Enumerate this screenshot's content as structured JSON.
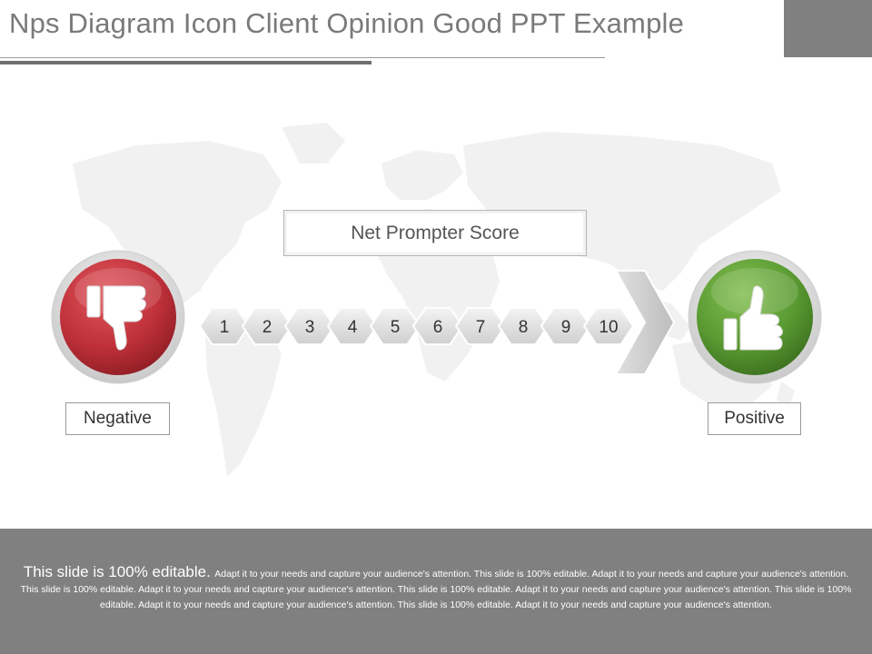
{
  "slide": {
    "title": "Nps Diagram Icon Client Opinion Good PPT Example"
  },
  "diagram": {
    "score_title": "Net Prompter Score",
    "scale_values": [
      "1",
      "2",
      "3",
      "4",
      "5",
      "6",
      "7",
      "8",
      "9",
      "10"
    ],
    "negative_label": "Negative",
    "positive_label": "Positive",
    "negative_icon": "thumbs-down-icon",
    "positive_icon": "thumbs-up-icon",
    "colors": {
      "negative": "#c0313a",
      "positive": "#5a9a32",
      "hexagon": "#e6e6e6",
      "footer": "#808080"
    }
  },
  "footer": {
    "lead": "This slide is 100% editable.",
    "body": "Adapt it to your needs and capture your audience's attention. This slide is 100% editable. Adapt it to your needs and capture your audience's attention. This slide is 100% editable. Adapt it to your needs and capture your audience's attention. This slide is 100% editable. Adapt it to your needs and capture your audience's attention. This slide is 100% editable. Adapt it to your needs and capture your audience's attention. This slide is 100% editable. Adapt it to your needs and capture your audience's attention."
  }
}
